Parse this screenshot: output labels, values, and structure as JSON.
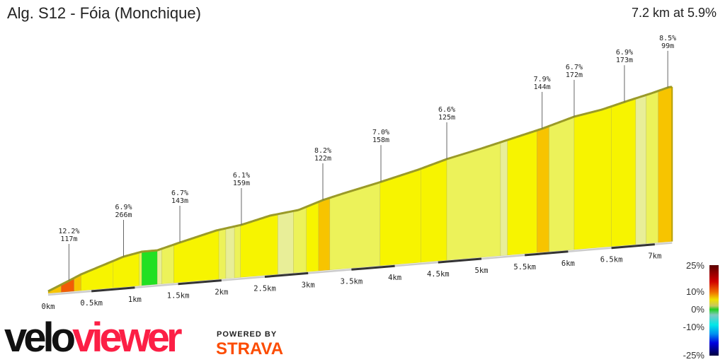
{
  "header": {
    "title": "Alg. S12 - Fóia (Monchique)",
    "summary": "7.2 km at 5.9%"
  },
  "chart_data": {
    "type": "area",
    "title": "Alg. S12 - Fóia (Monchique)",
    "xlabel": "",
    "ylabel": "",
    "xlim": [
      0,
      7.2
    ],
    "x_ticks": [
      "0km",
      "0.5km",
      "1km",
      "1.5km",
      "2km",
      "2.5km",
      "3km",
      "3.5km",
      "4km",
      "4.5km",
      "5km",
      "5.5km",
      "6km",
      "6.5km",
      "7km"
    ],
    "markers": [
      {
        "km": 0.24,
        "grade": "12.2%",
        "length": "117m"
      },
      {
        "km": 0.87,
        "grade": "6.9%",
        "length": "266m"
      },
      {
        "km": 1.52,
        "grade": "6.7%",
        "length": "143m"
      },
      {
        "km": 2.23,
        "grade": "6.1%",
        "length": "159m"
      },
      {
        "km": 3.17,
        "grade": "8.2%",
        "length": "122m"
      },
      {
        "km": 3.84,
        "grade": "7.0%",
        "length": "158m"
      },
      {
        "km": 4.6,
        "grade": "6.6%",
        "length": "125m"
      },
      {
        "km": 5.7,
        "grade": "7.9%",
        "length": "144m"
      },
      {
        "km": 6.07,
        "grade": "6.7%",
        "length": "172m"
      },
      {
        "km": 6.65,
        "grade": "6.9%",
        "length": "173m"
      },
      {
        "km": 7.15,
        "grade": "8.5%",
        "length": "99m"
      }
    ],
    "segments": [
      {
        "from": 0,
        "to": 0.15,
        "grade": 10
      },
      {
        "from": 0.15,
        "to": 0.3,
        "grade": 13
      },
      {
        "from": 0.3,
        "to": 0.38,
        "grade": 10
      },
      {
        "from": 0.38,
        "to": 0.75,
        "grade": 7
      },
      {
        "from": 0.75,
        "to": 1.05,
        "grade": 7
      },
      {
        "from": 1.05,
        "to": 1.08,
        "grade": 4
      },
      {
        "from": 1.08,
        "to": 1.26,
        "grade": 0
      },
      {
        "from": 1.26,
        "to": 1.31,
        "grade": 3
      },
      {
        "from": 1.31,
        "to": 1.45,
        "grade": 5
      },
      {
        "from": 1.45,
        "to": 1.97,
        "grade": 7
      },
      {
        "from": 1.97,
        "to": 2.05,
        "grade": 5
      },
      {
        "from": 2.05,
        "to": 2.15,
        "grade": 3
      },
      {
        "from": 2.15,
        "to": 2.22,
        "grade": 5
      },
      {
        "from": 2.22,
        "to": 2.65,
        "grade": 7
      },
      {
        "from": 2.65,
        "to": 2.83,
        "grade": 3
      },
      {
        "from": 2.83,
        "to": 2.98,
        "grade": 5
      },
      {
        "from": 2.98,
        "to": 3.12,
        "grade": 6
      },
      {
        "from": 3.12,
        "to": 3.25,
        "grade": 10
      },
      {
        "from": 3.25,
        "to": 3.83,
        "grade": 5
      },
      {
        "from": 3.83,
        "to": 4.3,
        "grade": 7
      },
      {
        "from": 4.3,
        "to": 4.6,
        "grade": 6
      },
      {
        "from": 4.6,
        "to": 5.22,
        "grade": 5
      },
      {
        "from": 5.22,
        "to": 5.3,
        "grade": 3
      },
      {
        "from": 5.3,
        "to": 5.64,
        "grade": 6
      },
      {
        "from": 5.64,
        "to": 5.78,
        "grade": 10
      },
      {
        "from": 5.78,
        "to": 6.07,
        "grade": 5
      },
      {
        "from": 6.07,
        "to": 6.5,
        "grade": 7
      },
      {
        "from": 6.5,
        "to": 6.78,
        "grade": 6
      },
      {
        "from": 6.78,
        "to": 6.9,
        "grade": 3
      },
      {
        "from": 6.9,
        "to": 7.04,
        "grade": 5
      },
      {
        "from": 7.04,
        "to": 7.2,
        "grade": 10
      }
    ],
    "legend": {
      "placement": "bottom-right",
      "labels": [
        "25%",
        "10%",
        "0%",
        "-10%",
        "-25%"
      ]
    }
  },
  "branding": {
    "logo_velo": "velo",
    "logo_viewer": "viewer",
    "powered_by": "POWERED BY",
    "strava": "STRAVA"
  }
}
